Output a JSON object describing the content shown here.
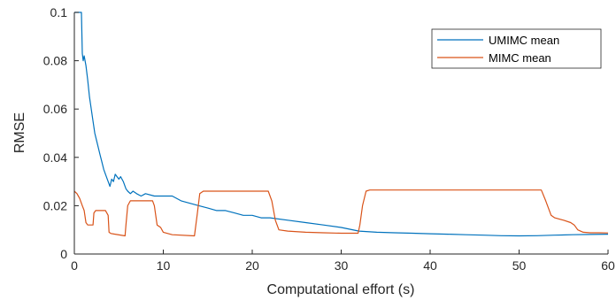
{
  "chart_data": {
    "type": "line",
    "title": "",
    "xlabel": "Computational effort (s)",
    "ylabel": "RMSE",
    "xlim": [
      0,
      60
    ],
    "ylim": [
      0,
      0.1
    ],
    "xticks": [
      0,
      10,
      20,
      30,
      40,
      50,
      60
    ],
    "xtick_labels": [
      "0",
      "10",
      "20",
      "30",
      "40",
      "50",
      "60"
    ],
    "yticks": [
      0,
      0.02,
      0.04,
      0.06,
      0.08,
      0.1
    ],
    "ytick_labels": [
      "0",
      "0.02",
      "0.04",
      "0.06",
      "0.08",
      "0.1"
    ],
    "grid": false,
    "legend_position": "top-right",
    "series": [
      {
        "name": "UMIMC mean",
        "color": "#0072BD",
        "points": [
          [
            0.0,
            0.1
          ],
          [
            0.8,
            0.1
          ],
          [
            0.9,
            0.083
          ],
          [
            1.0,
            0.08
          ],
          [
            1.1,
            0.082
          ],
          [
            1.3,
            0.078
          ],
          [
            1.5,
            0.072
          ],
          [
            1.7,
            0.065
          ],
          [
            1.9,
            0.06
          ],
          [
            2.1,
            0.055
          ],
          [
            2.3,
            0.05
          ],
          [
            2.5,
            0.047
          ],
          [
            2.7,
            0.044
          ],
          [
            2.9,
            0.041
          ],
          [
            3.1,
            0.038
          ],
          [
            3.3,
            0.035
          ],
          [
            3.5,
            0.033
          ],
          [
            3.7,
            0.031
          ],
          [
            3.9,
            0.029
          ],
          [
            4.0,
            0.028
          ],
          [
            4.2,
            0.031
          ],
          [
            4.4,
            0.03
          ],
          [
            4.6,
            0.033
          ],
          [
            4.8,
            0.032
          ],
          [
            5.0,
            0.031
          ],
          [
            5.2,
            0.032
          ],
          [
            5.5,
            0.03
          ],
          [
            5.8,
            0.027
          ],
          [
            6.0,
            0.026
          ],
          [
            6.3,
            0.025
          ],
          [
            6.6,
            0.026
          ],
          [
            7.0,
            0.025
          ],
          [
            7.5,
            0.024
          ],
          [
            8.0,
            0.025
          ],
          [
            9.0,
            0.024
          ],
          [
            10.0,
            0.024
          ],
          [
            11.0,
            0.024
          ],
          [
            12.0,
            0.022
          ],
          [
            13.0,
            0.021
          ],
          [
            14.0,
            0.02
          ],
          [
            15.0,
            0.019
          ],
          [
            16.0,
            0.018
          ],
          [
            17.0,
            0.018
          ],
          [
            18.0,
            0.017
          ],
          [
            19.0,
            0.016
          ],
          [
            20.0,
            0.016
          ],
          [
            21.0,
            0.015
          ],
          [
            22.0,
            0.015
          ],
          [
            24.0,
            0.014
          ],
          [
            26.0,
            0.013
          ],
          [
            28.0,
            0.012
          ],
          [
            30.0,
            0.011
          ],
          [
            32.0,
            0.0095
          ],
          [
            34.0,
            0.009
          ],
          [
            36.0,
            0.0088
          ],
          [
            38.0,
            0.0086
          ],
          [
            40.0,
            0.0084
          ],
          [
            42.0,
            0.0082
          ],
          [
            44.0,
            0.008
          ],
          [
            46.0,
            0.0078
          ],
          [
            48.0,
            0.0076
          ],
          [
            50.0,
            0.0075
          ],
          [
            52.0,
            0.0076
          ],
          [
            54.0,
            0.0078
          ],
          [
            56.0,
            0.008
          ],
          [
            58.0,
            0.0081
          ],
          [
            60.0,
            0.0082
          ]
        ]
      },
      {
        "name": "MIMC mean",
        "color": "#D95319",
        "points": [
          [
            0.0,
            0.026
          ],
          [
            0.3,
            0.025
          ],
          [
            0.6,
            0.023
          ],
          [
            0.9,
            0.02
          ],
          [
            1.1,
            0.018
          ],
          [
            1.3,
            0.013
          ],
          [
            1.5,
            0.012
          ],
          [
            1.8,
            0.012
          ],
          [
            2.1,
            0.012
          ],
          [
            2.2,
            0.017
          ],
          [
            2.4,
            0.018
          ],
          [
            3.5,
            0.018
          ],
          [
            3.8,
            0.016
          ],
          [
            3.9,
            0.009
          ],
          [
            4.1,
            0.0085
          ],
          [
            5.7,
            0.0075
          ],
          [
            5.8,
            0.012
          ],
          [
            6.0,
            0.02
          ],
          [
            6.3,
            0.022
          ],
          [
            6.8,
            0.022
          ],
          [
            8.0,
            0.022
          ],
          [
            8.8,
            0.022
          ],
          [
            9.0,
            0.02
          ],
          [
            9.3,
            0.012
          ],
          [
            9.7,
            0.011
          ],
          [
            10.0,
            0.009
          ],
          [
            11.0,
            0.008
          ],
          [
            13.5,
            0.0075
          ],
          [
            13.8,
            0.016
          ],
          [
            14.1,
            0.025
          ],
          [
            14.5,
            0.026
          ],
          [
            18.0,
            0.026
          ],
          [
            21.8,
            0.026
          ],
          [
            22.2,
            0.022
          ],
          [
            22.6,
            0.014
          ],
          [
            23.0,
            0.01
          ],
          [
            24.0,
            0.0095
          ],
          [
            26.0,
            0.009
          ],
          [
            28.0,
            0.0088
          ],
          [
            30.0,
            0.0086
          ],
          [
            31.9,
            0.0086
          ],
          [
            32.1,
            0.012
          ],
          [
            32.4,
            0.02
          ],
          [
            32.8,
            0.026
          ],
          [
            33.2,
            0.0265
          ],
          [
            40.0,
            0.0265
          ],
          [
            45.0,
            0.0265
          ],
          [
            52.5,
            0.0265
          ],
          [
            53.0,
            0.022
          ],
          [
            53.6,
            0.016
          ],
          [
            54.0,
            0.015
          ],
          [
            55.0,
            0.014
          ],
          [
            55.8,
            0.013
          ],
          [
            56.2,
            0.012
          ],
          [
            56.6,
            0.01
          ],
          [
            57.2,
            0.009
          ],
          [
            58.0,
            0.0088
          ],
          [
            59.0,
            0.0088
          ],
          [
            60.0,
            0.0087
          ]
        ]
      }
    ]
  }
}
